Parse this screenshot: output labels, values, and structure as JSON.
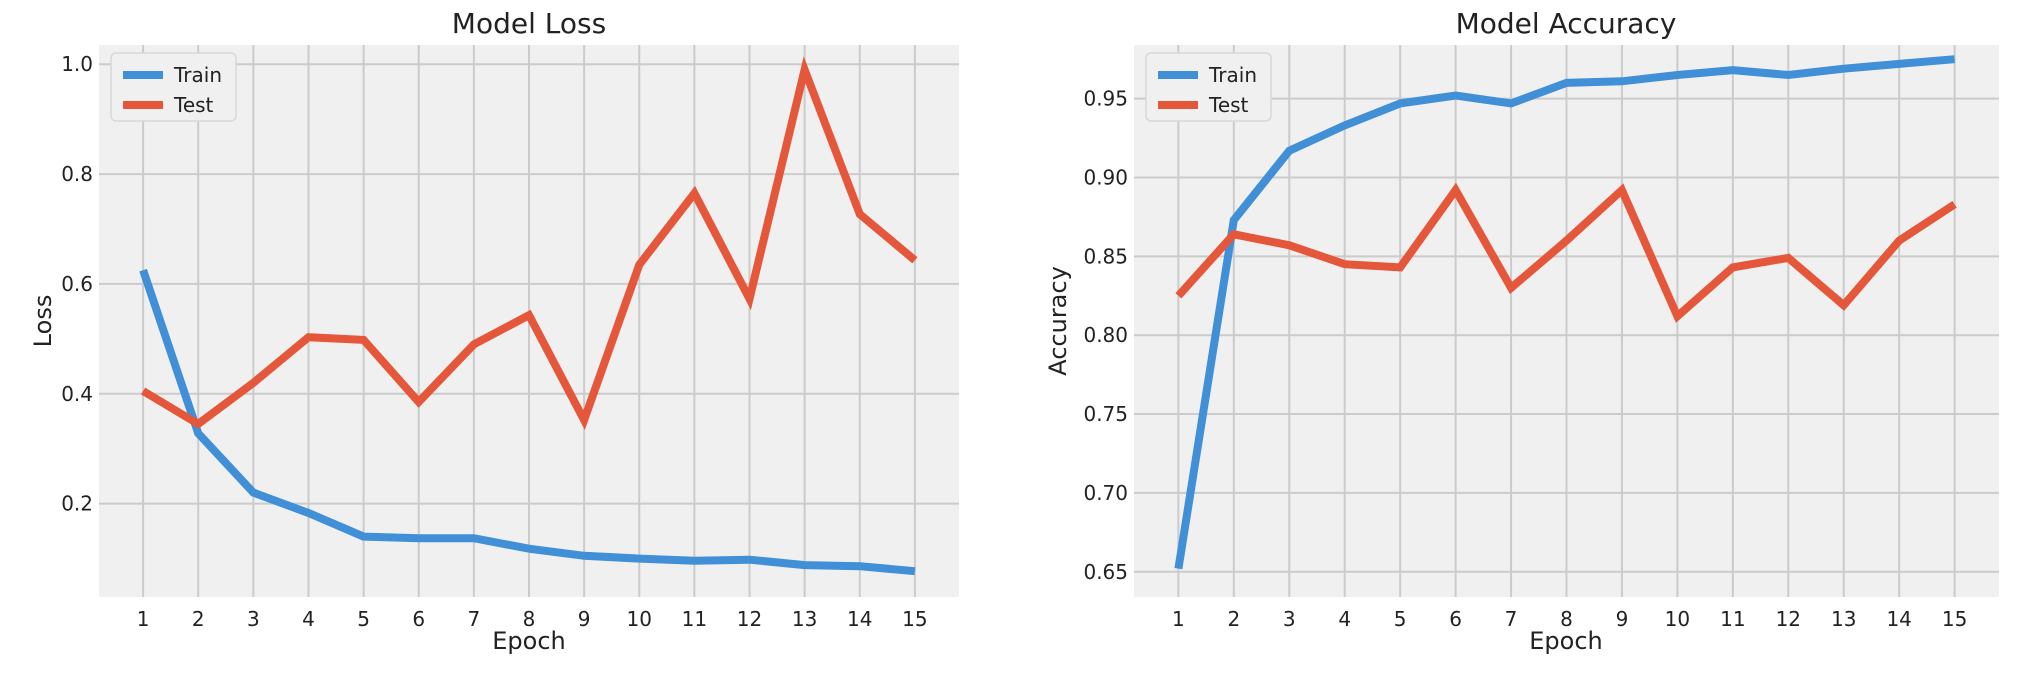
{
  "chart_data": [
    {
      "type": "line",
      "title": "Model Loss",
      "xlabel": "Epoch",
      "ylabel": "Loss",
      "x": [
        1,
        2,
        3,
        4,
        5,
        6,
        7,
        8,
        9,
        10,
        11,
        12,
        13,
        14,
        15
      ],
      "xlim": [
        0.2,
        15.8
      ],
      "ylim": [
        0.03,
        1.035
      ],
      "yticks": [
        0.2,
        0.4,
        0.6,
        0.8,
        1.0
      ],
      "ytick_labels": [
        "0.2",
        "0.4",
        "0.6",
        "0.8",
        "1.0"
      ],
      "grid": true,
      "legend_position": "top-left",
      "series": [
        {
          "name": "Train",
          "color": "#418fd6",
          "values": [
            0.625,
            0.328,
            0.22,
            0.183,
            0.14,
            0.137,
            0.137,
            0.118,
            0.105,
            0.1,
            0.096,
            0.098,
            0.088,
            0.086,
            0.077
          ]
        },
        {
          "name": "Test",
          "color": "#e5573b",
          "values": [
            0.405,
            0.345,
            0.42,
            0.503,
            0.498,
            0.385,
            0.49,
            0.543,
            0.352,
            0.635,
            0.765,
            0.573,
            0.99,
            0.727,
            0.643
          ]
        }
      ]
    },
    {
      "type": "line",
      "title": "Model Accuracy",
      "xlabel": "Epoch",
      "ylabel": "Accuracy",
      "x": [
        1,
        2,
        3,
        4,
        5,
        6,
        7,
        8,
        9,
        10,
        11,
        12,
        13,
        14,
        15
      ],
      "xlim": [
        0.2,
        15.8
      ],
      "ylim": [
        0.634,
        0.984
      ],
      "yticks": [
        0.65,
        0.7,
        0.75,
        0.8,
        0.85,
        0.9,
        0.95
      ],
      "ytick_labels": [
        "0.65",
        "0.70",
        "0.75",
        "0.80",
        "0.85",
        "0.90",
        "0.95"
      ],
      "grid": true,
      "legend_position": "top-left",
      "series": [
        {
          "name": "Train",
          "color": "#418fd6",
          "values": [
            0.652,
            0.873,
            0.917,
            0.933,
            0.947,
            0.952,
            0.947,
            0.96,
            0.961,
            0.965,
            0.968,
            0.965,
            0.969,
            0.972,
            0.975
          ]
        },
        {
          "name": "Test",
          "color": "#e5573b",
          "values": [
            0.825,
            0.864,
            0.857,
            0.845,
            0.843,
            0.892,
            0.83,
            0.86,
            0.892,
            0.812,
            0.843,
            0.849,
            0.819,
            0.86,
            0.883
          ]
        }
      ]
    }
  ],
  "style": {
    "plot_background": "#f0f0f0",
    "grid_color": "#cbcbcb"
  }
}
